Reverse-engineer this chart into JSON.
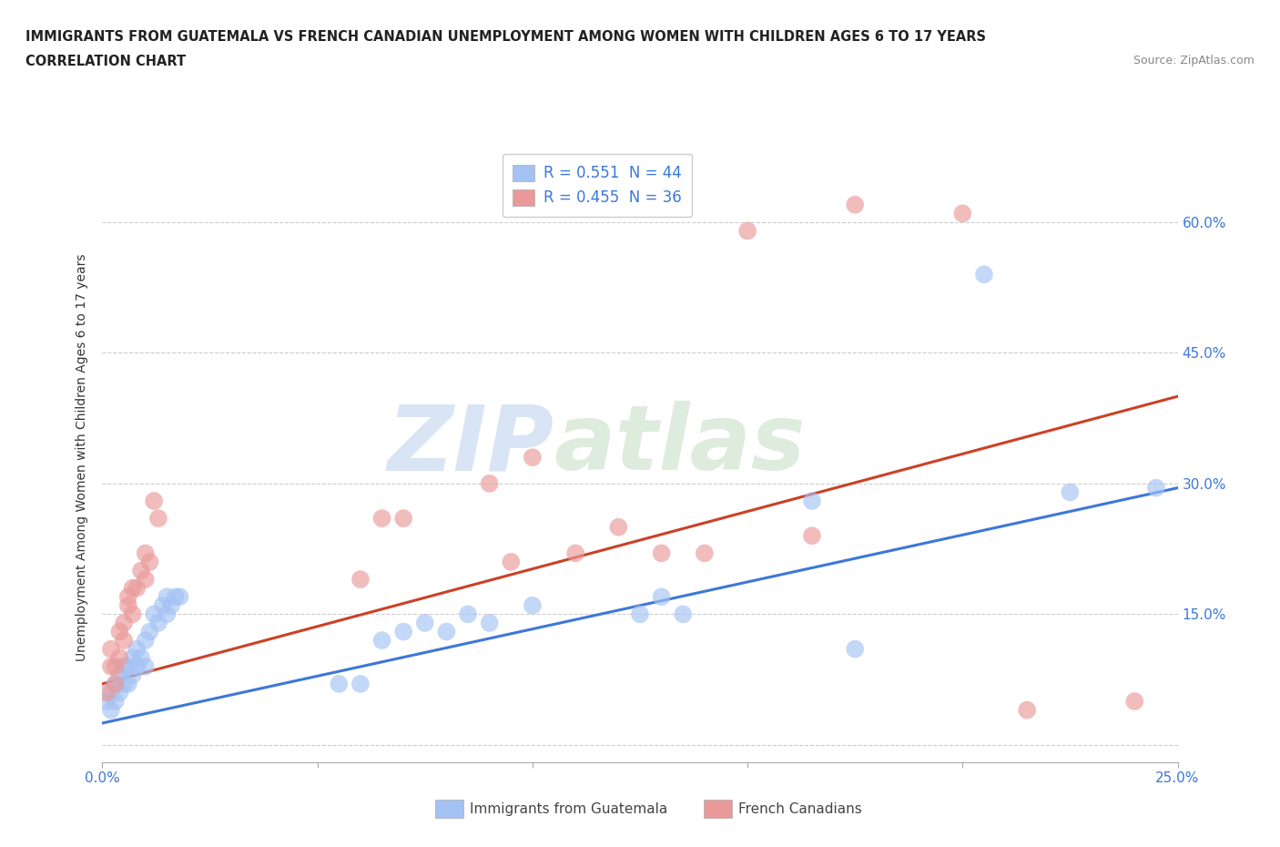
{
  "title_line1": "IMMIGRANTS FROM GUATEMALA VS FRENCH CANADIAN UNEMPLOYMENT AMONG WOMEN WITH CHILDREN AGES 6 TO 17 YEARS",
  "title_line2": "CORRELATION CHART",
  "source": "Source: ZipAtlas.com",
  "ylabel": "Unemployment Among Women with Children Ages 6 to 17 years",
  "xlim": [
    0,
    0.25
  ],
  "ylim": [
    -0.02,
    0.68
  ],
  "x_ticks": [
    0.0,
    0.05,
    0.1,
    0.15,
    0.2,
    0.25
  ],
  "y_ticks": [
    0.0,
    0.15,
    0.3,
    0.45,
    0.6
  ],
  "y_tick_labels": [
    "",
    "15.0%",
    "30.0%",
    "45.0%",
    "60.0%"
  ],
  "R_blue": 0.551,
  "N_blue": 44,
  "R_pink": 0.455,
  "N_pink": 36,
  "color_blue": "#a4c2f4",
  "color_pink": "#ea9999",
  "line_color_blue": "#3c78d8",
  "line_color_pink": "#cc4125",
  "legend_label_blue": "Immigrants from Guatemala",
  "legend_label_pink": "French Canadians",
  "watermark_zip": "ZIP",
  "watermark_atlas": "atlas",
  "blue_points": [
    [
      0.001,
      0.05
    ],
    [
      0.002,
      0.04
    ],
    [
      0.002,
      0.06
    ],
    [
      0.003,
      0.05
    ],
    [
      0.003,
      0.07
    ],
    [
      0.004,
      0.06
    ],
    [
      0.004,
      0.08
    ],
    [
      0.005,
      0.07
    ],
    [
      0.005,
      0.09
    ],
    [
      0.006,
      0.07
    ],
    [
      0.006,
      0.09
    ],
    [
      0.007,
      0.08
    ],
    [
      0.007,
      0.1
    ],
    [
      0.008,
      0.09
    ],
    [
      0.008,
      0.11
    ],
    [
      0.009,
      0.1
    ],
    [
      0.01,
      0.09
    ],
    [
      0.01,
      0.12
    ],
    [
      0.011,
      0.13
    ],
    [
      0.012,
      0.15
    ],
    [
      0.013,
      0.14
    ],
    [
      0.014,
      0.16
    ],
    [
      0.015,
      0.15
    ],
    [
      0.015,
      0.17
    ],
    [
      0.016,
      0.16
    ],
    [
      0.017,
      0.17
    ],
    [
      0.018,
      0.17
    ],
    [
      0.055,
      0.07
    ],
    [
      0.06,
      0.07
    ],
    [
      0.065,
      0.12
    ],
    [
      0.07,
      0.13
    ],
    [
      0.075,
      0.14
    ],
    [
      0.08,
      0.13
    ],
    [
      0.085,
      0.15
    ],
    [
      0.09,
      0.14
    ],
    [
      0.1,
      0.16
    ],
    [
      0.125,
      0.15
    ],
    [
      0.13,
      0.17
    ],
    [
      0.135,
      0.15
    ],
    [
      0.165,
      0.28
    ],
    [
      0.175,
      0.11
    ],
    [
      0.205,
      0.54
    ],
    [
      0.225,
      0.29
    ],
    [
      0.245,
      0.295
    ]
  ],
  "pink_points": [
    [
      0.001,
      0.06
    ],
    [
      0.002,
      0.09
    ],
    [
      0.002,
      0.11
    ],
    [
      0.003,
      0.07
    ],
    [
      0.003,
      0.09
    ],
    [
      0.004,
      0.1
    ],
    [
      0.004,
      0.13
    ],
    [
      0.005,
      0.12
    ],
    [
      0.005,
      0.14
    ],
    [
      0.006,
      0.16
    ],
    [
      0.006,
      0.17
    ],
    [
      0.007,
      0.15
    ],
    [
      0.007,
      0.18
    ],
    [
      0.008,
      0.18
    ],
    [
      0.009,
      0.2
    ],
    [
      0.01,
      0.19
    ],
    [
      0.01,
      0.22
    ],
    [
      0.011,
      0.21
    ],
    [
      0.012,
      0.28
    ],
    [
      0.013,
      0.26
    ],
    [
      0.06,
      0.19
    ],
    [
      0.065,
      0.26
    ],
    [
      0.07,
      0.26
    ],
    [
      0.09,
      0.3
    ],
    [
      0.095,
      0.21
    ],
    [
      0.1,
      0.33
    ],
    [
      0.11,
      0.22
    ],
    [
      0.12,
      0.25
    ],
    [
      0.13,
      0.22
    ],
    [
      0.14,
      0.22
    ],
    [
      0.15,
      0.59
    ],
    [
      0.165,
      0.24
    ],
    [
      0.175,
      0.62
    ],
    [
      0.2,
      0.61
    ],
    [
      0.215,
      0.04
    ],
    [
      0.24,
      0.05
    ]
  ],
  "blue_line_x": [
    0.0,
    0.25
  ],
  "blue_line_y": [
    0.025,
    0.295
  ],
  "pink_line_x": [
    0.0,
    0.25
  ],
  "pink_line_y": [
    0.07,
    0.4
  ]
}
